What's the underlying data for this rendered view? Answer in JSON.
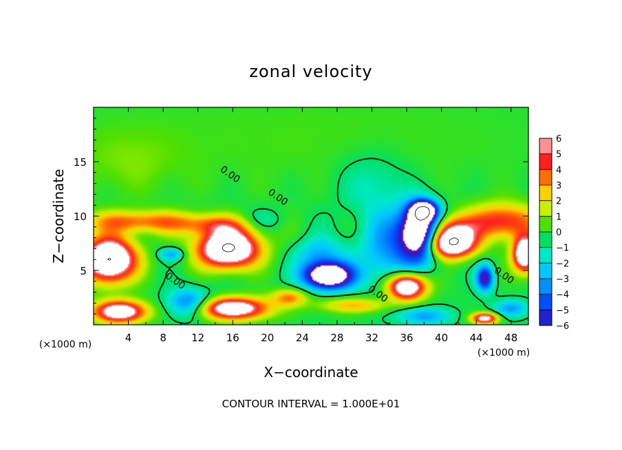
{
  "chart_data": {
    "type": "heatmap",
    "title": "zonal velocity",
    "xlabel": "X−coordinate",
    "ylabel": "Z−coordinate",
    "x_unit_label": "(×1000 m)",
    "z_unit_label": "(×1000 m)",
    "footer": "CONTOUR INTERVAL = 1.000E+01",
    "xlim": [
      0,
      50
    ],
    "ylim": [
      0,
      20
    ],
    "x_ticks": [
      4,
      8,
      12,
      16,
      20,
      24,
      28,
      32,
      36,
      40,
      44,
      48
    ],
    "y_ticks": [
      5,
      10,
      15
    ],
    "colorbar_ticks": [
      "6",
      "5",
      "4",
      "3",
      "2",
      "1",
      "0",
      "−1",
      "−2",
      "−3",
      "−4",
      "−5",
      "−6"
    ],
    "colorbar_range": [
      -6,
      6
    ],
    "contour_labels": [
      {
        "text": "0.00",
        "x": 15.5,
        "y": 13.6
      },
      {
        "text": "0.00",
        "x": 21.0,
        "y": 11.5
      },
      {
        "text": "0.00",
        "x": 9.2,
        "y": 3.8
      },
      {
        "text": "0.00",
        "x": 32.5,
        "y": 2.6
      },
      {
        "text": "0.00",
        "x": 47.0,
        "y": 4.3
      }
    ],
    "fields": [
      {
        "name": "upper",
        "x": 25,
        "y": 17,
        "sx": 30,
        "sy": 5,
        "a": 0.5
      },
      {
        "name": "upper-left",
        "x": 4,
        "y": 15,
        "sx": 6,
        "sy": 3,
        "a": 0.8
      },
      {
        "name": "jet-left",
        "x": 5,
        "y": 9.5,
        "sx": 6,
        "sy": 1,
        "a": 3.8
      },
      {
        "name": "jet-mid",
        "x": 14,
        "y": 9.2,
        "sx": 5,
        "sy": 1,
        "a": 3.2
      },
      {
        "name": "jet-right",
        "x": 47,
        "y": 9.5,
        "sx": 4,
        "sy": 1.6,
        "a": 5
      },
      {
        "name": "jet-right2",
        "x": 41,
        "y": 9,
        "sx": 3,
        "sy": 1.2,
        "a": 3.2
      },
      {
        "name": "core-a",
        "x": 1.8,
        "y": 6,
        "sx": 3,
        "sy": 2,
        "a": 10
      },
      {
        "name": "core-b",
        "x": 15.5,
        "y": 7,
        "sx": 3.5,
        "sy": 1.7,
        "a": 10
      },
      {
        "name": "core-c",
        "x": 41,
        "y": 7.5,
        "sx": 2.8,
        "sy": 1.3,
        "a": 10
      },
      {
        "name": "core-d",
        "x": 49.6,
        "y": 6.5,
        "sx": 1.4,
        "sy": 1.6,
        "a": 9
      },
      {
        "name": "core-e",
        "x": 36,
        "y": 3.5,
        "sx": 2.2,
        "sy": 1.2,
        "a": 9
      },
      {
        "name": "core-f",
        "x": 16,
        "y": 1.5,
        "sx": 4,
        "sy": 1,
        "a": 8
      },
      {
        "name": "core-g",
        "x": 3,
        "y": 1.2,
        "sx": 3,
        "sy": 1,
        "a": 8
      },
      {
        "name": "core-h",
        "x": 45,
        "y": 0.6,
        "sx": 1.5,
        "sy": 0.5,
        "a": 7
      },
      {
        "name": "low-red",
        "x": 22.5,
        "y": 2.5,
        "sx": 2,
        "sy": 0.8,
        "a": 3.5
      },
      {
        "name": "low-red2",
        "x": 30,
        "y": 1.8,
        "sx": 4,
        "sy": 0.7,
        "a": 3
      },
      {
        "name": "neg-a",
        "x": 27,
        "y": 4.5,
        "sx": 2.8,
        "sy": 1.2,
        "a": -10
      },
      {
        "name": "neg-b",
        "x": 37.5,
        "y": 8.5,
        "sx": 2.2,
        "sy": 2.4,
        "a": -10
      },
      {
        "name": "neg-c",
        "x": 38,
        "y": 10.5,
        "sx": 1.5,
        "sy": 0.9,
        "a": -8
      },
      {
        "name": "neg-d",
        "x": 34,
        "y": 7,
        "sx": 3.5,
        "sy": 3.5,
        "a": -3
      },
      {
        "name": "neg-e",
        "x": 45,
        "y": 4.3,
        "sx": 1,
        "sy": 1.2,
        "a": -6
      },
      {
        "name": "neg-f",
        "x": 9,
        "y": 6.5,
        "sx": 1.5,
        "sy": 0.6,
        "a": -3
      },
      {
        "name": "neg-g",
        "x": 11,
        "y": 2,
        "sx": 2.5,
        "sy": 1.3,
        "a": -4
      },
      {
        "name": "neg-h",
        "x": 26,
        "y": 6.5,
        "sx": 3,
        "sy": 1.5,
        "a": -2.5
      },
      {
        "name": "neg-i",
        "x": 32,
        "y": 13,
        "sx": 4,
        "sy": 3,
        "a": -1.3
      },
      {
        "name": "neg-j",
        "x": 38,
        "y": 0.8,
        "sx": 3,
        "sy": 0.8,
        "a": -3
      },
      {
        "name": "neg-k",
        "x": 48,
        "y": 1.5,
        "sx": 2,
        "sy": 0.8,
        "a": -3
      },
      {
        "name": "neg-l",
        "x": 19,
        "y": 9.5,
        "sx": 3,
        "sy": 1,
        "a": -1.5
      }
    ]
  },
  "colors": {
    "frame": "#000000",
    "palette": [
      "#7a00b0",
      "#2222cc",
      "#0050ff",
      "#0090ff",
      "#00c8ff",
      "#00e8c8",
      "#00e060",
      "#50e000",
      "#c8f000",
      "#ffd000",
      "#ff7000",
      "#ff2020",
      "#ff9090"
    ]
  }
}
